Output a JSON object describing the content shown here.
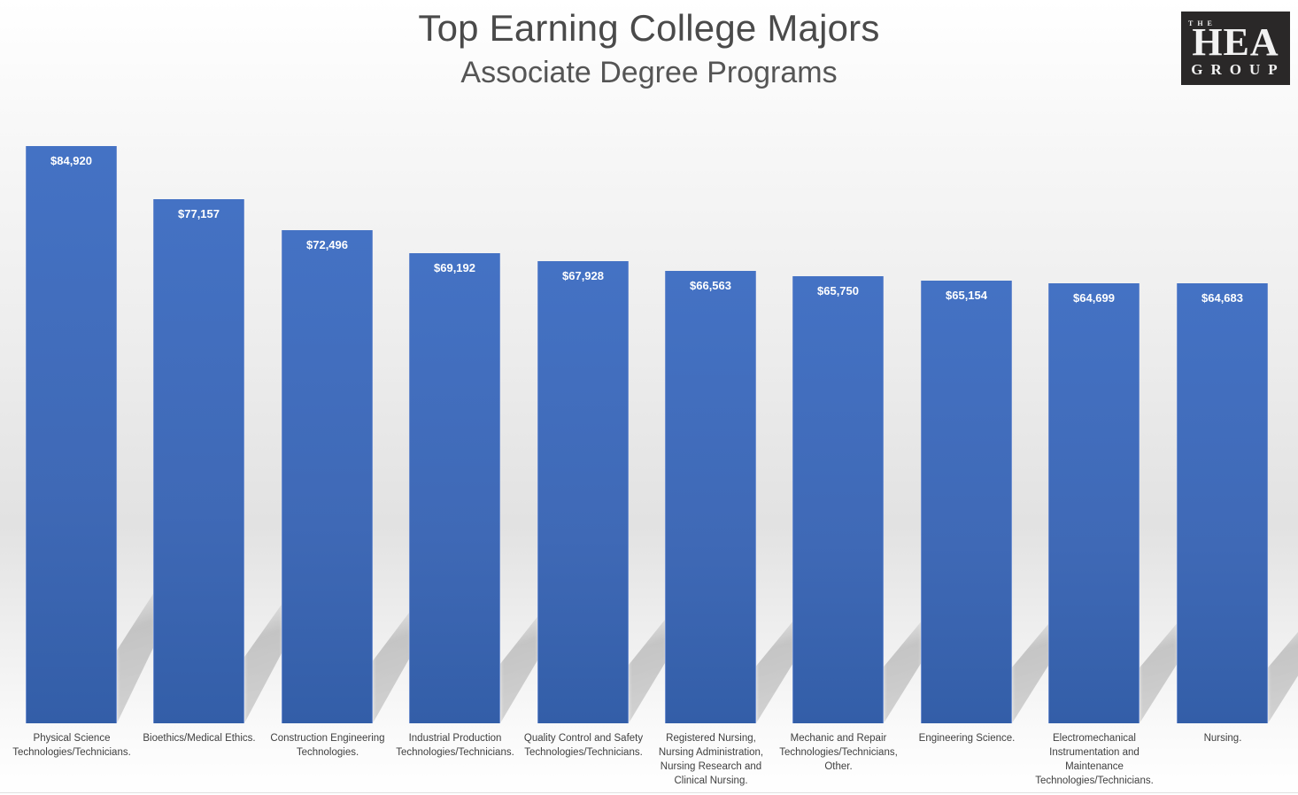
{
  "header": {
    "title": "Top Earning College Majors",
    "subtitle": "Associate Degree Programs"
  },
  "logo": {
    "line1": "THE",
    "line2": "HEA",
    "line3": "GROUP"
  },
  "colors": {
    "bar": "#4472c4",
    "bar_label": "#ffffff",
    "title": "#4a4a4a",
    "logo_bg": "#2a2828"
  },
  "chart_data": {
    "type": "bar",
    "title": "Top Earning College Majors",
    "subtitle": "Associate Degree Programs",
    "xlabel": "",
    "ylabel": "",
    "grid": false,
    "legend": null,
    "ylim": [
      0,
      90000
    ],
    "categories": [
      "Physical Science Technologies/Technicians.",
      "Bioethics/Medical Ethics.",
      "Construction Engineering Technologies.",
      "Industrial Production Technologies/Technicians.",
      "Quality Control and Safety Technologies/Technicians.",
      "Registered Nursing, Nursing Administration, Nursing Research and Clinical Nursing.",
      "Mechanic and Repair Technologies/Technicians, Other.",
      "Engineering Science.",
      "Electromechanical Instrumentation and Maintenance Technologies/Technicians.",
      "Nursing."
    ],
    "values": [
      84920,
      77157,
      72496,
      69192,
      67928,
      66563,
      65750,
      65154,
      64699,
      64683
    ],
    "data_labels": [
      "$84,920",
      "$77,157",
      "$72,496",
      "$69,192",
      "$67,928",
      "$66,563",
      "$65,750",
      "$65,154",
      "$64,699",
      "$64,683"
    ]
  },
  "axis_labels": [
    "Physical Science\nTechnologies/Technicians.",
    "Bioethics/Medical Ethics.",
    "Construction Engineering\nTechnologies.",
    "Industrial Production\nTechnologies/Technicians.",
    "Quality Control and Safety\nTechnologies/Technicians.",
    "Registered Nursing,\nNursing Administration,\nNursing Research and\nClinical Nursing.",
    "Mechanic and Repair\nTechnologies/Technicians,\nOther.",
    "Engineering Science.",
    "Electromechanical\nInstrumentation and\nMaintenance\nTechnologies/Technicians.",
    "Nursing."
  ]
}
